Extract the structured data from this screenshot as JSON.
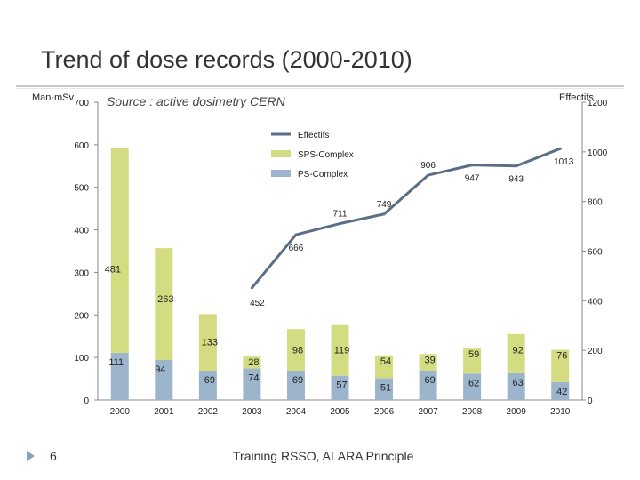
{
  "slide": {
    "title": "Trend of dose records (2000-2010)",
    "source": "Source : active dosimetry CERN",
    "footer": "Training RSSO,  ALARA Principle",
    "page_number": "6"
  },
  "chart_data": {
    "type": "bar",
    "stacked": true,
    "categories": [
      "2000",
      "2001",
      "2002",
      "2003",
      "2004",
      "2005",
      "2006",
      "2007",
      "2008",
      "2009",
      "2010"
    ],
    "left_axis": {
      "label": "Man·mSv",
      "min": 0,
      "max": 700,
      "ticks": [
        0,
        100,
        200,
        300,
        400,
        500,
        600,
        700
      ]
    },
    "right_axis": {
      "label": "Effectifs",
      "min": 0,
      "max": 1200,
      "ticks": [
        0,
        200,
        400,
        600,
        800,
        1000,
        1200
      ]
    },
    "series": [
      {
        "name": "PS-Complex",
        "kind": "bar",
        "axis": "left",
        "color": "#9db5cc",
        "values": [
          111,
          94,
          69,
          74,
          69,
          57,
          51,
          69,
          62,
          63,
          42
        ],
        "labels": [
          "111",
          "94",
          "69",
          "74",
          "69",
          "57",
          "51",
          "69",
          "62",
          "63",
          "42"
        ]
      },
      {
        "name": "SPS-Complex",
        "kind": "bar",
        "axis": "left",
        "color": "#d4dc82",
        "values": [
          481,
          263,
          133,
          28,
          98,
          119,
          54,
          39,
          59,
          92,
          76
        ],
        "labels": [
          "481",
          "263",
          "133",
          "28",
          "98",
          "119",
          "54",
          "39",
          "59",
          "92",
          "76"
        ]
      },
      {
        "name": "Effectifs",
        "kind": "line",
        "axis": "right",
        "color": "#5a6e85",
        "x": [
          "2003",
          "2004",
          "2005",
          "2006",
          "2007",
          "2008",
          "2009",
          "2010"
        ],
        "values": [
          452,
          666,
          711,
          749,
          906,
          947,
          943,
          1013
        ],
        "labels": [
          "452",
          "666",
          "711",
          "749",
          "906",
          "947",
          "943",
          "1013"
        ]
      }
    ],
    "legend": {
      "placement": "top-center",
      "entries": [
        "Effectifs",
        "SPS-Complex",
        "PS-Complex"
      ]
    }
  }
}
